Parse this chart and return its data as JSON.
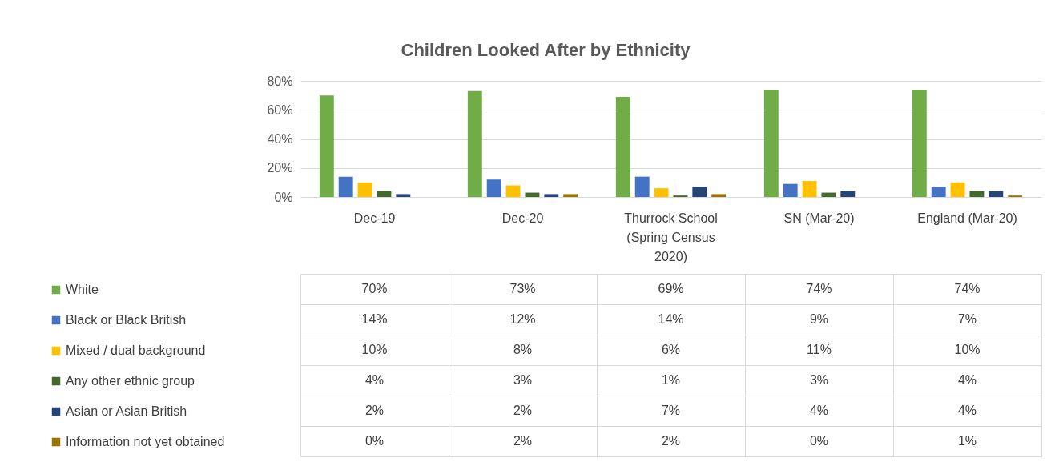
{
  "chart_data": {
    "type": "bar",
    "title": "Children Looked After by Ethnicity",
    "categories": [
      "Dec-19",
      "Dec-20",
      "Thurrock School (Spring Census 2020)",
      "SN (Mar-20)",
      "England (Mar-20)"
    ],
    "series": [
      {
        "name": "White",
        "color": "#70ad47",
        "values": [
          70,
          73,
          69,
          74,
          74
        ],
        "value_labels": [
          "70%",
          "73%",
          "69%",
          "74%",
          "74%"
        ]
      },
      {
        "name": "Black or Black British",
        "color": "#4472c4",
        "values": [
          14,
          12,
          14,
          9,
          7
        ],
        "value_labels": [
          "14%",
          "12%",
          "14%",
          "9%",
          "7%"
        ]
      },
      {
        "name": "Mixed / dual background",
        "color": "#ffc000",
        "values": [
          10,
          8,
          6,
          11,
          10
        ],
        "value_labels": [
          "10%",
          "8%",
          "6%",
          "11%",
          "10%"
        ]
      },
      {
        "name": "Any other ethnic group",
        "color": "#43682b",
        "values": [
          4,
          3,
          1,
          3,
          4
        ],
        "value_labels": [
          "4%",
          "3%",
          "1%",
          "3%",
          "4%"
        ]
      },
      {
        "name": "Asian or Asian British",
        "color": "#264478",
        "values": [
          2,
          2,
          7,
          4,
          4
        ],
        "value_labels": [
          "2%",
          "2%",
          "7%",
          "4%",
          "4%"
        ]
      },
      {
        "name": "Information not yet obtained",
        "color": "#997300",
        "values": [
          0,
          2,
          2,
          0,
          1
        ],
        "value_labels": [
          "0%",
          "2%",
          "2%",
          "0%",
          "1%"
        ]
      }
    ],
    "ylim": [
      0,
      80
    ],
    "yticks": [
      {
        "value": 0,
        "label": "0%"
      },
      {
        "value": 20,
        "label": "20%"
      },
      {
        "value": 40,
        "label": "40%"
      },
      {
        "value": 60,
        "label": "60%"
      },
      {
        "value": 80,
        "label": "80%"
      }
    ],
    "grid": "y",
    "legend": "bottom left"
  }
}
